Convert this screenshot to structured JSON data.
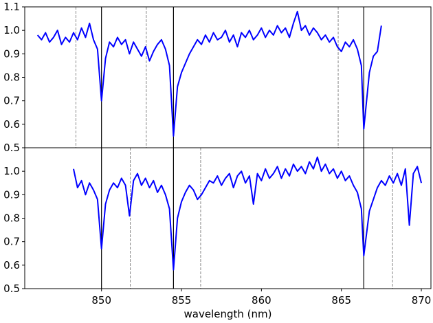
{
  "chart_data": [
    {
      "type": "line",
      "xlim": [
        845.2,
        870.6
      ],
      "ylim": [
        0.5,
        1.1
      ],
      "yticks": [
        0.5,
        0.6,
        0.7,
        0.8,
        0.9,
        {
          "value": 1,
          "label": "1.0"
        },
        1.1
      ],
      "vlines_solid": [
        850.0,
        854.5,
        866.4
      ],
      "vlines_dashed": [
        848.4,
        852.8,
        864.8
      ],
      "x": [
        846.0,
        846.25,
        846.5,
        846.75,
        847.0,
        847.25,
        847.5,
        847.75,
        848.0,
        848.25,
        848.5,
        848.75,
        849.0,
        849.25,
        849.5,
        849.75,
        850.0,
        850.25,
        850.5,
        850.75,
        851.0,
        851.25,
        851.5,
        851.75,
        852.0,
        852.25,
        852.5,
        852.75,
        853.0,
        853.25,
        853.5,
        853.75,
        854.0,
        854.25,
        854.5,
        854.75,
        855.0,
        855.25,
        855.5,
        855.75,
        856.0,
        856.25,
        856.5,
        856.75,
        857.0,
        857.25,
        857.5,
        857.75,
        858.0,
        858.25,
        858.5,
        858.75,
        859.0,
        859.25,
        859.5,
        859.75,
        860.0,
        860.25,
        860.5,
        860.75,
        861.0,
        861.25,
        861.5,
        861.75,
        862.0,
        862.25,
        862.5,
        862.75,
        863.0,
        863.25,
        863.5,
        863.75,
        864.0,
        864.25,
        864.5,
        864.75,
        865.0,
        865.25,
        865.5,
        865.75,
        866.0,
        866.25,
        866.4,
        866.75,
        867.0,
        867.25,
        867.5
      ],
      "series": [
        {
          "color": "#0000ff",
          "values": [
            0.98,
            0.96,
            0.99,
            0.95,
            0.97,
            1.0,
            0.94,
            0.97,
            0.95,
            0.99,
            0.96,
            1.01,
            0.97,
            1.03,
            0.96,
            0.92,
            0.7,
            0.88,
            0.95,
            0.93,
            0.97,
            0.94,
            0.96,
            0.9,
            0.95,
            0.92,
            0.89,
            0.93,
            0.87,
            0.91,
            0.94,
            0.96,
            0.92,
            0.85,
            0.55,
            0.76,
            0.82,
            0.86,
            0.9,
            0.93,
            0.96,
            0.94,
            0.98,
            0.95,
            0.99,
            0.96,
            0.97,
            1.0,
            0.95,
            0.98,
            0.93,
            0.99,
            0.97,
            1.0,
            0.96,
            0.98,
            1.01,
            0.97,
            1.0,
            0.98,
            1.02,
            0.99,
            1.01,
            0.97,
            1.03,
            1.08,
            1.0,
            1.02,
            0.98,
            1.01,
            0.99,
            0.96,
            0.98,
            0.95,
            0.97,
            0.93,
            0.91,
            0.95,
            0.93,
            0.96,
            0.92,
            0.85,
            0.58,
            0.82,
            0.89,
            0.91,
            1.02
          ]
        }
      ]
    },
    {
      "type": "line",
      "xlim": [
        845.2,
        870.6
      ],
      "ylim": [
        0.5,
        1.1
      ],
      "yticks": [
        0.5,
        0.6,
        0.7,
        0.8,
        0.9,
        {
          "value": 1,
          "label": "1.0"
        }
      ],
      "xticks": [
        850,
        855,
        860,
        865,
        870
      ],
      "x_label": "wavelength (nm)",
      "vlines_solid": [
        850.0,
        854.5,
        866.4
      ],
      "vlines_dashed": [
        851.8,
        856.2,
        868.2
      ],
      "x": [
        848.25,
        848.5,
        848.75,
        849.0,
        849.25,
        849.5,
        849.75,
        850.0,
        850.25,
        850.5,
        850.75,
        851.0,
        851.25,
        851.5,
        851.75,
        852.0,
        852.25,
        852.5,
        852.75,
        853.0,
        853.25,
        853.5,
        853.75,
        854.0,
        854.25,
        854.5,
        854.75,
        855.0,
        855.25,
        855.5,
        855.75,
        856.0,
        856.25,
        856.5,
        856.75,
        857.0,
        857.25,
        857.5,
        857.75,
        858.0,
        858.25,
        858.5,
        858.75,
        859.0,
        859.25,
        859.5,
        859.75,
        860.0,
        860.25,
        860.5,
        860.75,
        861.0,
        861.25,
        861.5,
        861.75,
        862.0,
        862.25,
        862.5,
        862.75,
        863.0,
        863.25,
        863.5,
        863.75,
        864.0,
        864.25,
        864.5,
        864.75,
        865.0,
        865.25,
        865.5,
        865.75,
        866.0,
        866.25,
        866.4,
        866.75,
        867.0,
        867.25,
        867.5,
        867.75,
        868.0,
        868.25,
        868.5,
        868.75,
        869.0,
        869.25,
        869.5,
        869.75,
        870.0
      ],
      "series": [
        {
          "color": "#0000ff",
          "values": [
            1.01,
            0.93,
            0.96,
            0.9,
            0.95,
            0.92,
            0.88,
            0.67,
            0.86,
            0.92,
            0.95,
            0.93,
            0.97,
            0.94,
            0.81,
            0.96,
            0.99,
            0.94,
            0.97,
            0.93,
            0.96,
            0.91,
            0.94,
            0.9,
            0.84,
            0.58,
            0.8,
            0.87,
            0.91,
            0.94,
            0.92,
            0.88,
            0.9,
            0.93,
            0.96,
            0.95,
            0.98,
            0.94,
            0.97,
            0.99,
            0.93,
            0.98,
            1.0,
            0.95,
            0.98,
            0.86,
            0.99,
            0.96,
            1.01,
            0.97,
            0.99,
            1.02,
            0.97,
            1.01,
            0.98,
            1.03,
            1.0,
            1.02,
            0.99,
            1.04,
            1.01,
            1.06,
            1.0,
            1.03,
            0.99,
            1.01,
            0.97,
            1.0,
            0.96,
            0.98,
            0.94,
            0.91,
            0.84,
            0.64,
            0.83,
            0.88,
            0.93,
            0.96,
            0.94,
            0.98,
            0.95,
            0.99,
            0.94,
            1.01,
            0.77,
            0.99,
            1.02,
            0.95
          ]
        }
      ]
    }
  ]
}
